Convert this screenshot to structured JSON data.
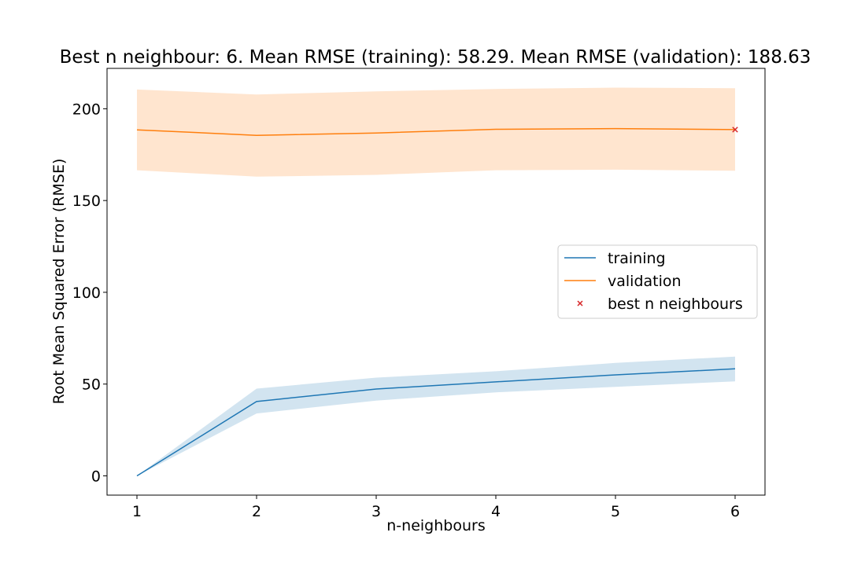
{
  "chart_data": {
    "type": "line",
    "title": "Best n neighbour: 6. Mean RMSE (training): 58.29. Mean RMSE (validation): 188.63",
    "xlabel": "n-neighbours",
    "ylabel": "Root Mean Squared Error (RMSE)",
    "x": [
      1,
      2,
      3,
      4,
      5,
      6
    ],
    "xlim": [
      0.75,
      6.25
    ],
    "ylim": [
      -10.5,
      222
    ],
    "x_ticks": [
      1,
      2,
      3,
      4,
      5,
      6
    ],
    "y_ticks": [
      0,
      50,
      100,
      150,
      200
    ],
    "series": [
      {
        "name": "training",
        "color": "#1f77b4",
        "values": [
          0,
          40.5,
          47.3,
          51.2,
          55.0,
          58.29
        ],
        "band_lower": [
          0,
          34.0,
          41.0,
          45.5,
          48.5,
          51.5
        ],
        "band_upper": [
          0,
          47.5,
          53.5,
          57.0,
          61.5,
          65.0
        ]
      },
      {
        "name": "validation",
        "color": "#ff7f0e",
        "values": [
          188.5,
          185.5,
          186.8,
          188.8,
          189.2,
          188.63
        ],
        "band_lower": [
          166.5,
          163.0,
          164.0,
          166.5,
          166.8,
          166.2
        ],
        "band_upper": [
          210.5,
          207.8,
          209.5,
          210.8,
          211.5,
          211.2
        ]
      }
    ],
    "markers": [
      {
        "name": "best n neighbours",
        "x": 6,
        "y": 188.63,
        "color": "#d62728",
        "symbol": "x"
      }
    ],
    "legend": {
      "placement": "center-right",
      "entries": [
        "training",
        "validation",
        "best n neighbours"
      ]
    },
    "grid": false
  }
}
